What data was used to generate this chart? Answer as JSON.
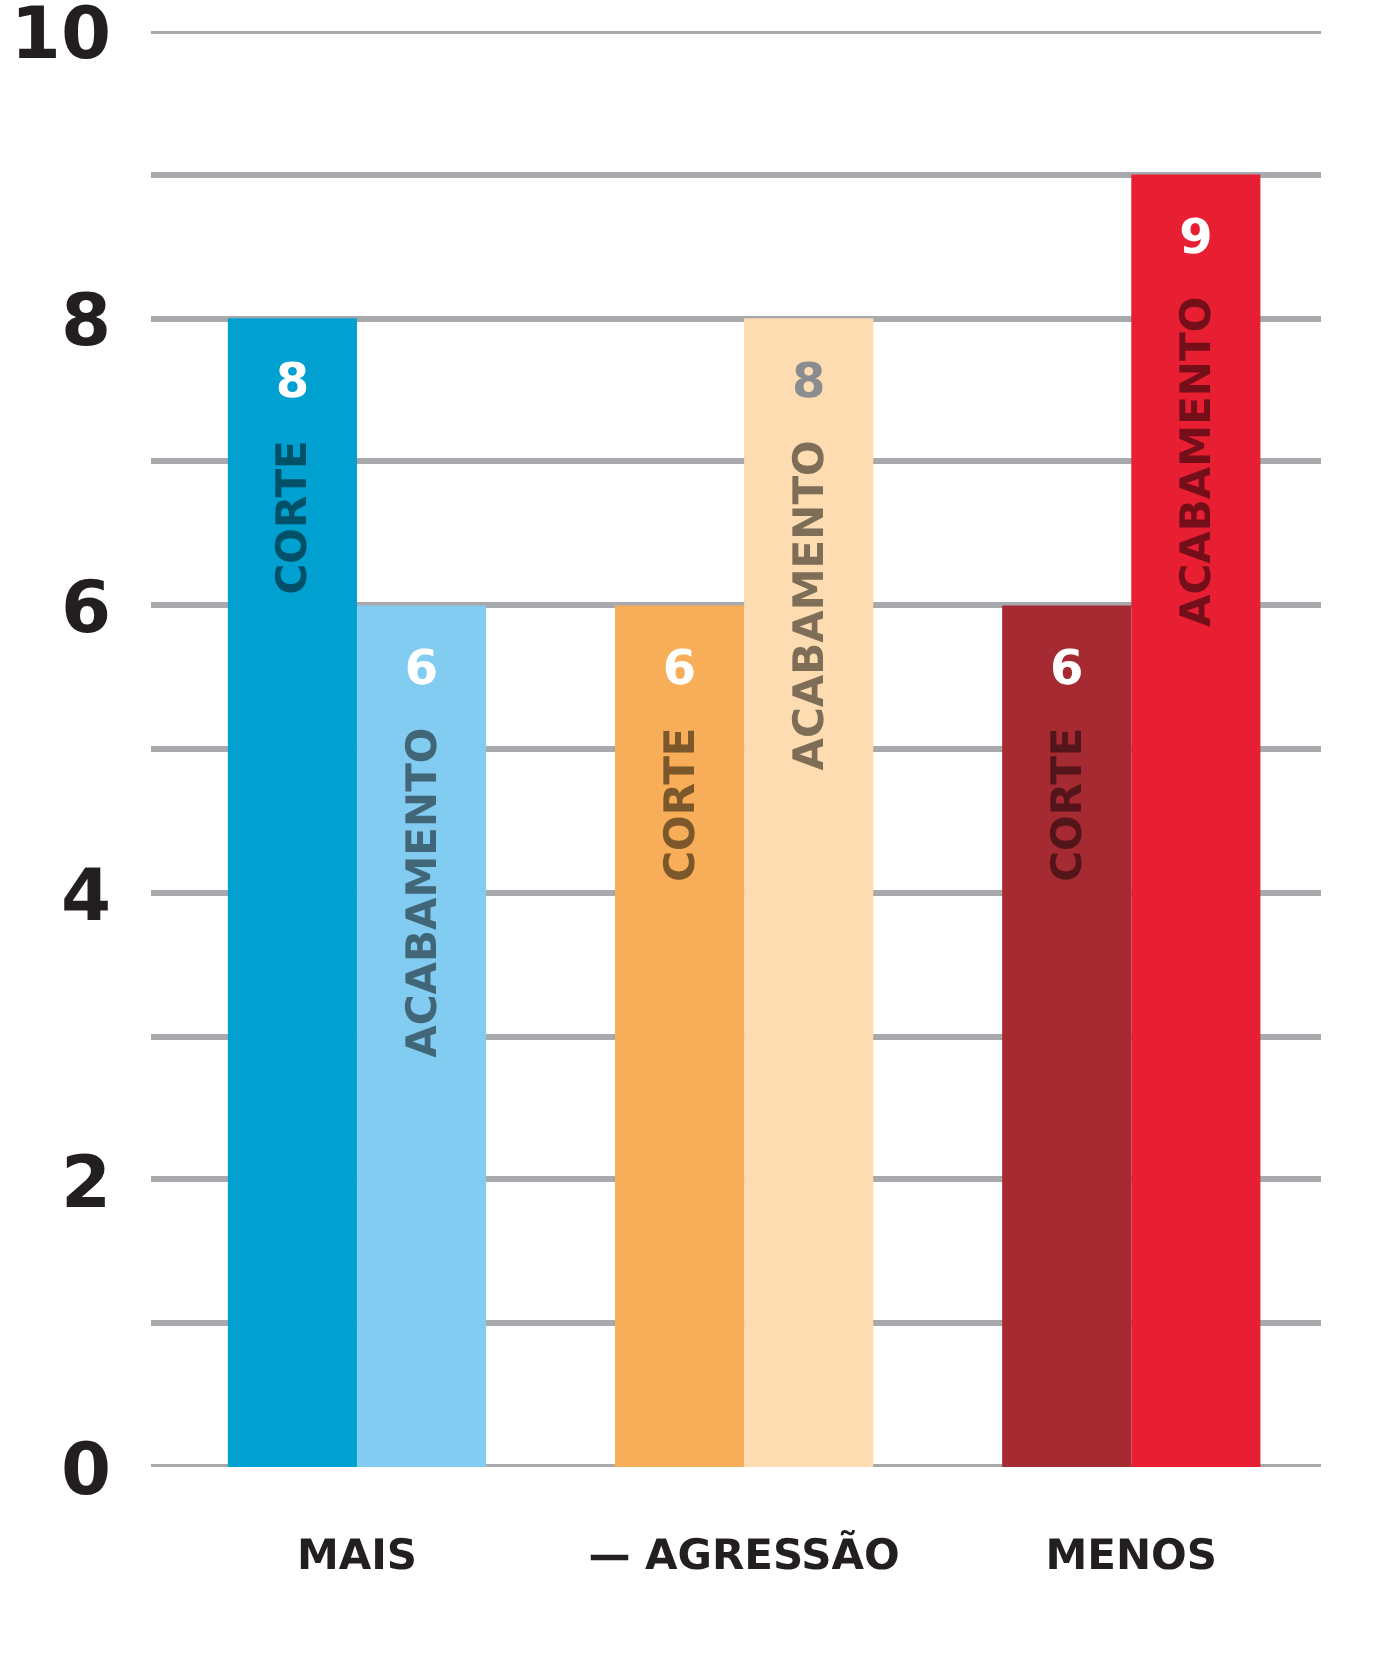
{
  "chart_data": {
    "type": "bar",
    "categories": [
      "MAIS",
      "— AGRESSÃO",
      "MENOS"
    ],
    "series": [
      {
        "name": "CORTE",
        "colors": [
          "#00a0d1",
          "#f8ae58",
          "#a62a32"
        ],
        "values": [
          8,
          6,
          6
        ]
      },
      {
        "name": "ACABAMENTO",
        "colors": [
          "#83ccf1",
          "#fcdcb0",
          "#e81f32"
        ],
        "values": [
          6,
          8,
          9
        ]
      }
    ],
    "ylim": [
      0,
      10
    ],
    "yticks": [
      0,
      {
        "value": 1,
        "label": null
      },
      2,
      {
        "value": 3,
        "label": null
      },
      4,
      {
        "value": 5,
        "label": null
      },
      6,
      {
        "value": 7,
        "label": null
      },
      8,
      {
        "value": 9,
        "label": null
      },
      10
    ],
    "grid": "y",
    "data_labels": true
  }
}
